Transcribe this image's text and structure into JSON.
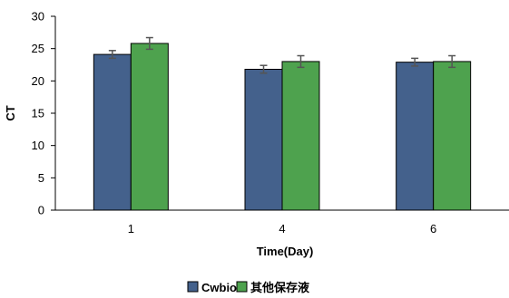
{
  "chart_data": {
    "type": "bar",
    "title": "",
    "xlabel": "Time(Day)",
    "ylabel": "CT",
    "ylim": [
      0,
      30
    ],
    "yticks": [
      0,
      5,
      10,
      15,
      20,
      25,
      30
    ],
    "categories": [
      "1",
      "4",
      "6"
    ],
    "grid": false,
    "legend_position": "bottom",
    "series": [
      {
        "name": "Cwbio",
        "color": "#44618C",
        "values": [
          24.1,
          21.8,
          22.9
        ],
        "errors": [
          0.6,
          0.6,
          0.6
        ]
      },
      {
        "name": "其他保存液",
        "color": "#4EA24E",
        "values": [
          25.8,
          23.0,
          23.0
        ],
        "errors": [
          0.9,
          0.9,
          0.9
        ]
      }
    ]
  }
}
